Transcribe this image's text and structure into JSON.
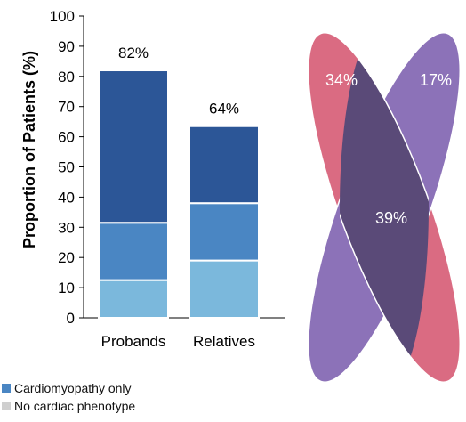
{
  "chart_data": [
    {
      "type": "bar",
      "stacked": true,
      "title": "",
      "xlabel": "",
      "ylabel": "Proportion of Patients (%)",
      "ylim": [
        0,
        100
      ],
      "yticks": [
        0,
        10,
        20,
        30,
        40,
        50,
        60,
        70,
        80,
        90,
        100
      ],
      "categories": [
        "Probands",
        "Relatives"
      ],
      "series": [
        {
          "color": "#7BB8DC",
          "values": [
            12.5,
            19
          ]
        },
        {
          "color": "#4A86C3",
          "values": [
            19,
            19
          ]
        },
        {
          "color": "#2C5697",
          "values": [
            50.5,
            25.5
          ]
        }
      ],
      "totals": [
        82,
        64
      ],
      "total_labels": [
        "82%",
        "64%"
      ],
      "grid": false
    },
    {
      "type": "venn",
      "sets": [
        {
          "label": "34%",
          "value": 34,
          "color": "#8C72B8"
        },
        {
          "label": "17%",
          "value": 17,
          "color": "#DA6B82"
        }
      ],
      "overlap": {
        "label": "39%",
        "value": 39,
        "color": "#5A4A78"
      }
    }
  ],
  "legend": [
    {
      "label": "Cardiomyopathy only",
      "color": "#4A86C3"
    },
    {
      "label": "No cardiac phenotype",
      "color": "#CFCFCF"
    }
  ]
}
